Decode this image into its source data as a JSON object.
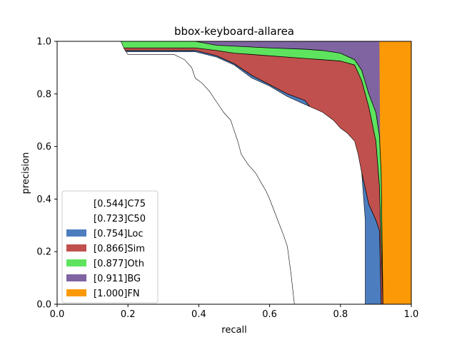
{
  "chart_data": {
    "type": "area",
    "title": "bbox-keyboard-allarea",
    "xlabel": "recall",
    "ylabel": "precision",
    "xlim": [
      0,
      1
    ],
    "ylim": [
      0,
      1
    ],
    "x_ticks": [
      "0.0",
      "0.2",
      "0.4",
      "0.6",
      "0.8",
      "1.0"
    ],
    "y_ticks": [
      "0.0",
      "0.2",
      "0.4",
      "0.6",
      "0.8",
      "1.0"
    ],
    "legend_position": "lower-left",
    "series": [
      {
        "name": "[0.544]C75",
        "color": "#ffffff",
        "points": [
          [
            0,
            1
          ],
          [
            0.18,
            1
          ],
          [
            0.19,
            0.97
          ],
          [
            0.2,
            0.95
          ],
          [
            0.33,
            0.95
          ],
          [
            0.36,
            0.93
          ],
          [
            0.38,
            0.9
          ],
          [
            0.39,
            0.86
          ],
          [
            0.41,
            0.84
          ],
          [
            0.43,
            0.81
          ],
          [
            0.45,
            0.77
          ],
          [
            0.47,
            0.73
          ],
          [
            0.49,
            0.7
          ],
          [
            0.5,
            0.66
          ],
          [
            0.51,
            0.62
          ],
          [
            0.52,
            0.57
          ],
          [
            0.54,
            0.53
          ],
          [
            0.56,
            0.5
          ],
          [
            0.59,
            0.43
          ],
          [
            0.6,
            0.4
          ],
          [
            0.62,
            0.33
          ],
          [
            0.64,
            0.26
          ],
          [
            0.65,
            0.22
          ],
          [
            0.66,
            0.12
          ],
          [
            0.67,
            0
          ]
        ]
      },
      {
        "name": "[0.723]C50",
        "color": "#ffffff",
        "points": [
          [
            0,
            1
          ],
          [
            0.1,
            1
          ],
          [
            0.1,
            0.96
          ],
          [
            0.39,
            0.96
          ],
          [
            0.45,
            0.94
          ],
          [
            0.5,
            0.91
          ],
          [
            0.55,
            0.86
          ],
          [
            0.6,
            0.83
          ],
          [
            0.65,
            0.79
          ],
          [
            0.7,
            0.76
          ],
          [
            0.75,
            0.73
          ],
          [
            0.78,
            0.7
          ],
          [
            0.8,
            0.67
          ],
          [
            0.82,
            0.65
          ],
          [
            0.84,
            0.62
          ],
          [
            0.85,
            0.57
          ],
          [
            0.86,
            0.5
          ],
          [
            0.87,
            0.32
          ],
          [
            0.87,
            0
          ]
        ]
      },
      {
        "name": "[0.754]Loc",
        "color": "#4c7ebf",
        "points": [
          [
            0,
            1
          ],
          [
            0.1,
            1
          ],
          [
            0.1,
            0.965
          ],
          [
            0.39,
            0.965
          ],
          [
            0.45,
            0.945
          ],
          [
            0.5,
            0.915
          ],
          [
            0.55,
            0.87
          ],
          [
            0.6,
            0.835
          ],
          [
            0.65,
            0.8
          ],
          [
            0.7,
            0.775
          ],
          [
            0.72,
            0.74
          ],
          [
            0.75,
            0.71
          ],
          [
            0.78,
            0.69
          ],
          [
            0.8,
            0.66
          ],
          [
            0.83,
            0.62
          ],
          [
            0.85,
            0.56
          ],
          [
            0.87,
            0.44
          ],
          [
            0.88,
            0.38
          ],
          [
            0.9,
            0.32
          ],
          [
            0.91,
            0.28
          ],
          [
            0.915,
            0
          ]
        ]
      },
      {
        "name": "[0.866]Sim",
        "color": "#c0504d",
        "points": [
          [
            0,
            1
          ],
          [
            0.09,
            1
          ],
          [
            0.1,
            0.975
          ],
          [
            0.39,
            0.975
          ],
          [
            0.45,
            0.965
          ],
          [
            0.5,
            0.955
          ],
          [
            0.55,
            0.95
          ],
          [
            0.6,
            0.945
          ],
          [
            0.65,
            0.94
          ],
          [
            0.7,
            0.935
          ],
          [
            0.75,
            0.93
          ],
          [
            0.8,
            0.925
          ],
          [
            0.84,
            0.91
          ],
          [
            0.86,
            0.85
          ],
          [
            0.88,
            0.75
          ],
          [
            0.9,
            0.62
          ],
          [
            0.91,
            0.45
          ],
          [
            0.92,
            0
          ]
        ]
      },
      {
        "name": "[0.877]Oth",
        "color": "#5ee35e",
        "points": [
          [
            0,
            1
          ],
          [
            0.39,
            1
          ],
          [
            0.45,
            0.985
          ],
          [
            0.6,
            0.975
          ],
          [
            0.7,
            0.97
          ],
          [
            0.75,
            0.965
          ],
          [
            0.8,
            0.955
          ],
          [
            0.84,
            0.93
          ],
          [
            0.86,
            0.89
          ],
          [
            0.88,
            0.8
          ],
          [
            0.9,
            0.73
          ],
          [
            0.91,
            0.64
          ],
          [
            0.915,
            0.5
          ],
          [
            0.92,
            0
          ]
        ]
      },
      {
        "name": "[0.911]BG",
        "color": "#8064a2",
        "points": [
          [
            0,
            1
          ],
          [
            0.91,
            1
          ],
          [
            0.915,
            0
          ]
        ]
      },
      {
        "name": "[1.000]FN",
        "color": "#fb9a06",
        "points": [
          [
            0,
            1
          ],
          [
            0.91,
            1
          ],
          [
            0.91,
            1
          ],
          [
            1,
            1
          ],
          [
            1,
            0
          ]
        ]
      }
    ]
  }
}
